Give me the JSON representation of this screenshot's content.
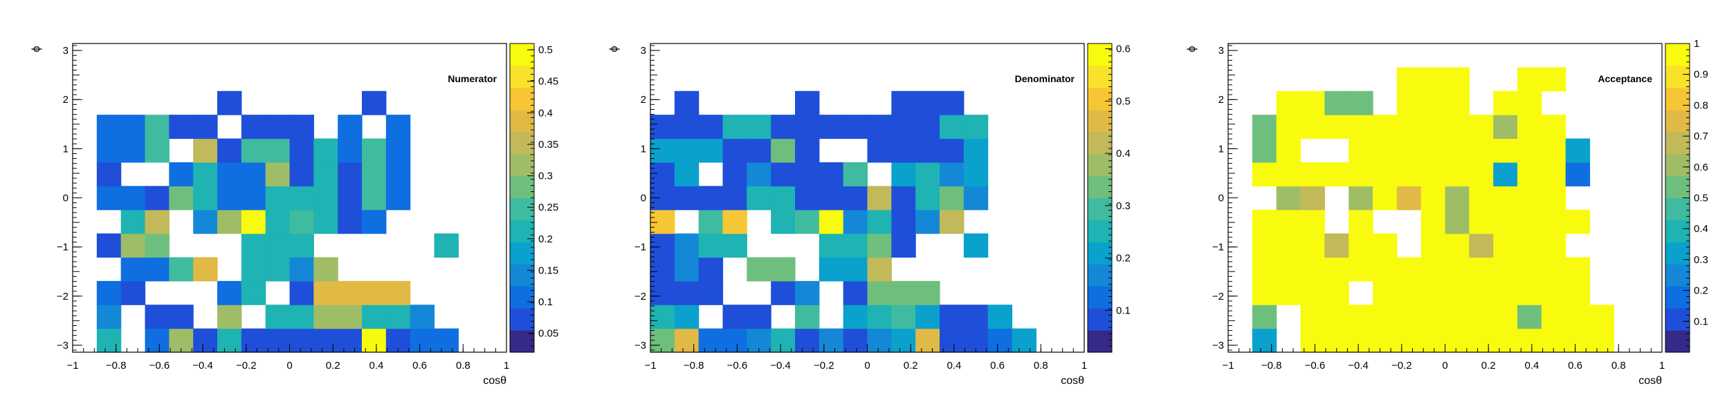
{
  "palette": [
    "#352a87",
    "#1f4fd8",
    "#0f6ee0",
    "#1488d6",
    "#0aa1cd",
    "#1fb3b3",
    "#3fbba0",
    "#6ebf7e",
    "#9fbd67",
    "#c2b95a",
    "#e0ba45",
    "#f7c635",
    "#f9e22a",
    "#f9fb0e"
  ],
  "chart_data": [
    {
      "type": "heatmap",
      "title": "Numerator",
      "xlabel": "cosθ",
      "ylabel": "ϕ",
      "xlim": [
        -1,
        1
      ],
      "ylim": [
        -3.1416,
        3.1416
      ],
      "zlim": [
        0.02,
        0.51
      ],
      "nx": 18,
      "ny": 13,
      "xticks": [
        "−1",
        "−0.8",
        "−0.6",
        "−0.4",
        "−0.2",
        "0",
        "0.2",
        "0.4",
        "0.6",
        "0.8",
        "1"
      ],
      "yticks": [
        "−3",
        "−2",
        "−1",
        "0",
        "1",
        "2",
        "3"
      ],
      "zticks": [
        "0.05",
        "0.1",
        "0.15",
        "0.2",
        "0.25",
        "0.3",
        "0.35",
        "0.4",
        "0.45",
        "0.5"
      ],
      "values": [
        [
          0,
          0.2,
          0,
          0.1,
          0.3,
          0.08,
          0.2,
          0.08,
          0.08,
          0.08,
          0.08,
          0.08,
          0.51,
          0.08,
          0.1,
          0.1,
          0,
          0
        ],
        [
          0,
          0.15,
          0,
          0.08,
          0.08,
          0,
          0.3,
          0,
          0.2,
          0.2,
          0.3,
          0.3,
          0.2,
          0.2,
          0.15,
          0,
          0,
          0
        ],
        [
          0,
          0.1,
          0.08,
          0,
          0,
          0,
          0.1,
          0.2,
          0,
          0.08,
          0.4,
          0.38,
          0.38,
          0.38,
          0,
          0,
          0,
          0
        ],
        [
          0,
          0,
          0.1,
          0.1,
          0.25,
          0.38,
          0,
          0.2,
          0.2,
          0.15,
          0.3,
          0,
          0,
          0,
          0,
          0,
          0,
          0
        ],
        [
          0,
          0.08,
          0.3,
          0.28,
          0,
          0,
          0,
          0.2,
          0.2,
          0.2,
          0,
          0,
          0,
          0,
          0,
          0.2,
          0,
          0
        ],
        [
          0,
          0,
          0.2,
          0.35,
          0,
          0.15,
          0.3,
          0.51,
          0.2,
          0.25,
          0.2,
          0.08,
          0.1,
          0,
          0,
          0,
          0,
          0
        ],
        [
          0,
          0.1,
          0.1,
          0.08,
          0.28,
          0.2,
          0.1,
          0.1,
          0.2,
          0.2,
          0.2,
          0.08,
          0.25,
          0.1,
          0,
          0,
          0,
          0
        ],
        [
          0,
          0.08,
          0,
          0,
          0.1,
          0.2,
          0.1,
          0.1,
          0.3,
          0.08,
          0.2,
          0.08,
          0.25,
          0.1,
          0,
          0,
          0,
          0
        ],
        [
          0,
          0.1,
          0.1,
          0.25,
          0,
          0.35,
          0.08,
          0.25,
          0.25,
          0.08,
          0.2,
          0.1,
          0.25,
          0.1,
          0,
          0,
          0,
          0
        ],
        [
          0,
          0.1,
          0.1,
          0.25,
          0.08,
          0.08,
          0,
          0.08,
          0.08,
          0.08,
          0,
          0.1,
          0,
          0.1,
          0,
          0,
          0,
          0
        ],
        [
          0,
          0,
          0,
          0,
          0,
          0,
          0.08,
          0,
          0,
          0,
          0,
          0,
          0.08,
          0,
          0,
          0,
          0,
          0
        ],
        [
          0,
          0,
          0,
          0,
          0,
          0,
          0,
          0,
          0,
          0,
          0,
          0,
          0,
          0,
          0,
          0,
          0,
          0
        ],
        [
          0,
          0,
          0,
          0,
          0,
          0,
          0,
          0,
          0,
          0,
          0,
          0,
          0,
          0,
          0,
          0,
          0,
          0
        ]
      ]
    },
    {
      "type": "heatmap",
      "title": "Denominator",
      "xlabel": "cosθ",
      "ylabel": "ϕ",
      "xlim": [
        -1,
        1
      ],
      "ylim": [
        -3.1416,
        3.1416
      ],
      "zlim": [
        0.02,
        0.61
      ],
      "nx": 18,
      "ny": 13,
      "xticks": [
        "−1",
        "−0.8",
        "−0.6",
        "−0.4",
        "−0.2",
        "0",
        "0.2",
        "0.4",
        "0.6",
        "0.8",
        "1"
      ],
      "yticks": [
        "−3",
        "−2",
        "−1",
        "0",
        "1",
        "2",
        "3"
      ],
      "zticks": [
        "0.1",
        "0.2",
        "0.3",
        "0.4",
        "0.5",
        "0.6"
      ],
      "values": [
        [
          0.35,
          0.45,
          0.12,
          0.12,
          0.15,
          0.25,
          0.1,
          0.15,
          0.1,
          0.15,
          0.2,
          0.45,
          0.1,
          0.1,
          0.12,
          0.2,
          0,
          0
        ],
        [
          0.25,
          0.2,
          0,
          0.1,
          0.1,
          0,
          0.3,
          0,
          0.2,
          0.25,
          0.3,
          0.2,
          0.1,
          0.1,
          0.2,
          0,
          0,
          0
        ],
        [
          0.1,
          0.1,
          0.1,
          0,
          0,
          0.1,
          0.15,
          0,
          0.1,
          0.35,
          0.35,
          0.35,
          0,
          0,
          0,
          0,
          0,
          0
        ],
        [
          0.1,
          0.15,
          0.1,
          0,
          0.35,
          0.35,
          0,
          0.2,
          0.2,
          0.4,
          0,
          0,
          0,
          0,
          0,
          0,
          0,
          0
        ],
        [
          0.1,
          0.15,
          0.25,
          0.25,
          0,
          0,
          0,
          0.25,
          0.25,
          0.35,
          0.1,
          0,
          0,
          0.2,
          0,
          0,
          0,
          0
        ],
        [
          0.5,
          0,
          0.3,
          0.5,
          0,
          0.25,
          0.3,
          0.6,
          0.15,
          0.25,
          0.1,
          0.15,
          0.4,
          0,
          0,
          0,
          0,
          0
        ],
        [
          0.1,
          0.1,
          0.1,
          0.1,
          0.25,
          0.25,
          0.1,
          0.1,
          0.1,
          0.4,
          0.1,
          0.25,
          0.35,
          0.15,
          0,
          0,
          0,
          0
        ],
        [
          0.1,
          0.2,
          0,
          0.1,
          0.15,
          0.1,
          0.1,
          0.1,
          0.3,
          0,
          0.2,
          0.25,
          0.15,
          0.2,
          0,
          0,
          0,
          0
        ],
        [
          0.2,
          0.2,
          0.2,
          0.1,
          0.1,
          0.35,
          0.1,
          0,
          0,
          0.1,
          0.1,
          0.1,
          0.1,
          0.2,
          0,
          0,
          0,
          0
        ],
        [
          0.1,
          0.1,
          0.1,
          0.25,
          0.25,
          0.1,
          0.1,
          0.1,
          0.1,
          0.1,
          0.1,
          0.1,
          0.25,
          0.25,
          0,
          0,
          0,
          0
        ],
        [
          0,
          0.1,
          0,
          0,
          0,
          0,
          0.1,
          0,
          0,
          0,
          0.1,
          0.1,
          0.1,
          0,
          0,
          0,
          0,
          0
        ],
        [
          0,
          0,
          0,
          0,
          0,
          0,
          0,
          0,
          0,
          0,
          0,
          0,
          0,
          0,
          0,
          0,
          0,
          0
        ],
        [
          0,
          0,
          0,
          0,
          0,
          0,
          0,
          0,
          0,
          0,
          0,
          0,
          0,
          0,
          0,
          0,
          0,
          0
        ]
      ]
    },
    {
      "type": "heatmap",
      "title": "Acceptance",
      "xlabel": "cosθ",
      "ylabel": "ϕ",
      "xlim": [
        -1,
        1
      ],
      "ylim": [
        -3.1416,
        3.1416
      ],
      "zlim": [
        0,
        1
      ],
      "nx": 18,
      "ny": 13,
      "xticks": [
        "−1",
        "−0.8",
        "−0.6",
        "−0.4",
        "−0.2",
        "0",
        "0.2",
        "0.4",
        "0.6",
        "0.8",
        "1"
      ],
      "yticks": [
        "−3",
        "−2",
        "−1",
        "0",
        "1",
        "2",
        "3"
      ],
      "zticks": [
        "0.1",
        "0.2",
        "0.3",
        "0.4",
        "0.5",
        "0.6",
        "0.7",
        "0.8",
        "0.9",
        "1"
      ],
      "values": [
        [
          0,
          0.35,
          0,
          1,
          1,
          1,
          1,
          1,
          1,
          1,
          1,
          1,
          1,
          1,
          1,
          1,
          0,
          0
        ],
        [
          0,
          0.5,
          0,
          1,
          1,
          1,
          1,
          1,
          1,
          1,
          1,
          1,
          0.5,
          1,
          1,
          1,
          0,
          0
        ],
        [
          0,
          1,
          1,
          1,
          1,
          0,
          1,
          1,
          1,
          1,
          1,
          1,
          1,
          1,
          1,
          0,
          0,
          0
        ],
        [
          0,
          1,
          1,
          1,
          1,
          1,
          1,
          1,
          1,
          1,
          1,
          1,
          1,
          1,
          1,
          0,
          0,
          0
        ],
        [
          0,
          1,
          1,
          1,
          0.7,
          1,
          1,
          0,
          1,
          1,
          0.7,
          1,
          1,
          1,
          0,
          0,
          0,
          0
        ],
        [
          0,
          1,
          1,
          1,
          0,
          1,
          0,
          0,
          1,
          0.6,
          1,
          1,
          1,
          1,
          1,
          0,
          0,
          0
        ],
        [
          0,
          0,
          0.6,
          0.7,
          0,
          0.6,
          1,
          0.75,
          1,
          0.6,
          1,
          1,
          1,
          1,
          0,
          0,
          0,
          0
        ],
        [
          0,
          1,
          1,
          1,
          1,
          1,
          1,
          1,
          1,
          1,
          1,
          0.3,
          1,
          1,
          0.2,
          0,
          0,
          0
        ],
        [
          0,
          0.5,
          1,
          0,
          0,
          1,
          1,
          1,
          1,
          1,
          1,
          1,
          1,
          1,
          0.3,
          0,
          0,
          0
        ],
        [
          0,
          0.5,
          1,
          1,
          1,
          1,
          1,
          1,
          1,
          1,
          1,
          0.6,
          1,
          1,
          0,
          0,
          0,
          0
        ],
        [
          0,
          0,
          1,
          1,
          0.5,
          0.5,
          0,
          1,
          1,
          1,
          0,
          1,
          1,
          0,
          0,
          0,
          0,
          0
        ],
        [
          0,
          0,
          0,
          0,
          0,
          0,
          0,
          1,
          1,
          1,
          0,
          0,
          1,
          1,
          0,
          0,
          0,
          0
        ],
        [
          0,
          0,
          0,
          0,
          0,
          0,
          0,
          0,
          0,
          0,
          0,
          0,
          0,
          0,
          0,
          0,
          0,
          0
        ]
      ]
    }
  ]
}
